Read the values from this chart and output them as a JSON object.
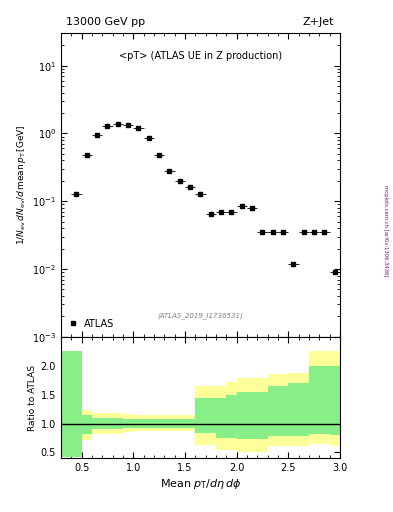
{
  "title_left": "13000 GeV pp",
  "title_right": "Z+Jet",
  "main_annotation": "<pT> (ATLAS UE in Z production)",
  "dataset_id": "(ATLAS_2019_I1736531)",
  "legend_label": "ATLAS",
  "watermark": "mcplots.cern.ch [arXiv:1306.3436]",
  "data_x": [
    0.45,
    0.55,
    0.65,
    0.75,
    0.85,
    0.95,
    1.05,
    1.15,
    1.25,
    1.35,
    1.45,
    1.55,
    1.65,
    1.75,
    1.85,
    1.95,
    2.05,
    2.15,
    2.25,
    2.35,
    2.45,
    2.55,
    2.65,
    2.75,
    2.85,
    2.95
  ],
  "data_y": [
    0.13,
    0.48,
    0.95,
    1.3,
    1.4,
    1.35,
    1.2,
    0.85,
    0.48,
    0.28,
    0.2,
    0.16,
    0.13,
    0.065,
    0.07,
    0.07,
    0.085,
    0.08,
    0.035,
    0.035,
    0.035,
    0.012,
    0.035,
    0.035,
    0.035,
    0.009
  ],
  "data_xerr": [
    0.05,
    0.05,
    0.05,
    0.05,
    0.05,
    0.05,
    0.05,
    0.05,
    0.05,
    0.05,
    0.05,
    0.05,
    0.05,
    0.05,
    0.05,
    0.05,
    0.05,
    0.05,
    0.05,
    0.05,
    0.05,
    0.05,
    0.05,
    0.05,
    0.05,
    0.05
  ],
  "ratio_bins": [
    0.3,
    0.4,
    0.5,
    0.6,
    0.7,
    0.8,
    0.9,
    1.0,
    1.1,
    1.2,
    1.3,
    1.4,
    1.5,
    1.6,
    1.7,
    1.8,
    1.9,
    2.0,
    2.1,
    2.2,
    2.3,
    2.4,
    2.5,
    2.6,
    2.7,
    2.8,
    2.9,
    3.0
  ],
  "ratio_green_low": [
    0.42,
    0.42,
    0.82,
    0.9,
    0.9,
    0.9,
    0.92,
    0.93,
    0.93,
    0.93,
    0.93,
    0.93,
    0.93,
    0.83,
    0.83,
    0.75,
    0.75,
    0.73,
    0.73,
    0.73,
    0.78,
    0.78,
    0.78,
    0.78,
    0.82,
    0.82,
    0.8
  ],
  "ratio_green_high": [
    2.25,
    2.25,
    1.14,
    1.1,
    1.1,
    1.1,
    1.08,
    1.08,
    1.08,
    1.08,
    1.08,
    1.08,
    1.08,
    1.45,
    1.45,
    1.45,
    1.5,
    1.55,
    1.55,
    1.55,
    1.65,
    1.65,
    1.7,
    1.7,
    2.0,
    2.0,
    2.0
  ],
  "ratio_yellow_low": [
    0.42,
    0.42,
    0.72,
    0.82,
    0.82,
    0.82,
    0.85,
    0.87,
    0.87,
    0.87,
    0.87,
    0.87,
    0.87,
    0.63,
    0.63,
    0.55,
    0.55,
    0.5,
    0.5,
    0.5,
    0.62,
    0.62,
    0.62,
    0.62,
    0.65,
    0.65,
    0.62
  ],
  "ratio_yellow_high": [
    2.25,
    2.25,
    1.24,
    1.18,
    1.18,
    1.18,
    1.16,
    1.14,
    1.14,
    1.14,
    1.14,
    1.14,
    1.14,
    1.65,
    1.65,
    1.65,
    1.72,
    1.78,
    1.78,
    1.78,
    1.85,
    1.85,
    1.88,
    1.88,
    2.25,
    2.25,
    2.25
  ],
  "xlim": [
    0.3,
    3.0
  ],
  "ylim_main": [
    0.001,
    30
  ],
  "ylim_ratio": [
    0.4,
    2.5
  ],
  "marker_color": "black",
  "marker_style": "s",
  "marker_size": 3.5,
  "green_color": "#88ee88",
  "yellow_color": "#ffff99",
  "ratio_line_color": "black",
  "axis_bg_color": "#ffffff",
  "fig_bg_color": "#ffffff"
}
